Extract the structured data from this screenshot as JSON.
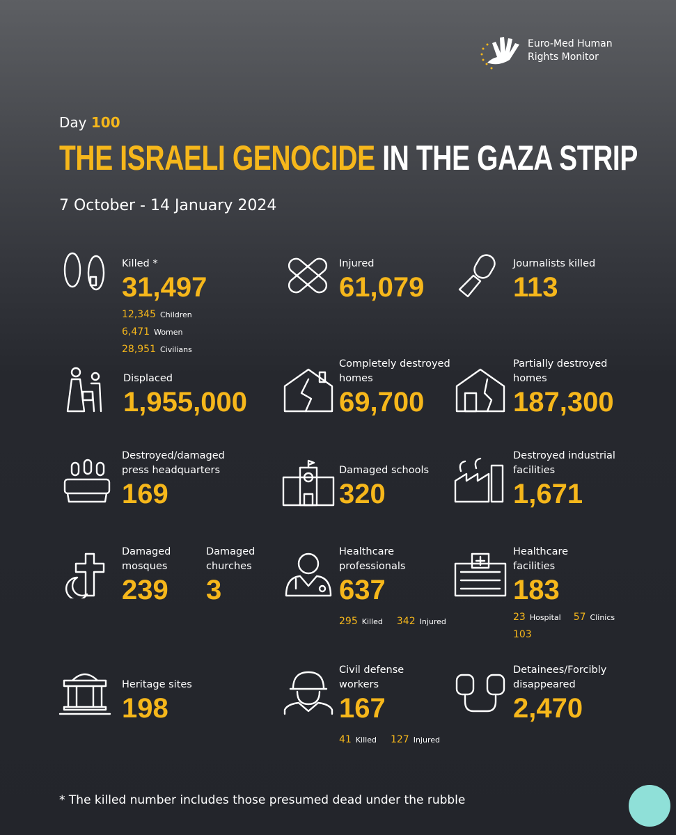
{
  "header": {
    "org": "Euro-Med Human Rights Monitor",
    "day_label": "Day",
    "day_number": "100",
    "title_highlight": "THE ISRAELI GENOCIDE",
    "title_rest": "IN THE GAZA STRIP",
    "date_range": "7 October - 14 January 2024"
  },
  "stats": [
    {
      "label": "Killed *",
      "value": "31,497",
      "breakdown": [
        {
          "value": "12,345",
          "label": "Children"
        },
        {
          "value": "6,471",
          "label": "Women"
        },
        {
          "value": "28,951",
          "label": "Civilians"
        }
      ]
    },
    {
      "label": "Injured",
      "value": "61,079"
    },
    {
      "label": "Journalists killed",
      "value": "113"
    },
    {
      "label": "Displaced",
      "value": "1,955,000"
    },
    {
      "label": "Completely destroyed homes",
      "value": "69,700"
    },
    {
      "label": "Partially destroyed homes",
      "value": "187,300"
    },
    {
      "label": "Destroyed/damaged press headquarters",
      "value": "169"
    },
    {
      "label": "Damaged schools",
      "value": "320"
    },
    {
      "label": "Destroyed industrial facilities",
      "value": "1,671"
    },
    {
      "label": "Damaged mosques",
      "value": "239"
    },
    {
      "label": "Damaged churches",
      "value": "3"
    },
    {
      "label": "Healthcare professionals",
      "value": "637",
      "breakdown": [
        {
          "value": "295",
          "label": "Killed"
        },
        {
          "value": "342",
          "label": "Injured"
        }
      ]
    },
    {
      "label": "Healthcare facilities",
      "value": "183",
      "breakdown": [
        {
          "value": "23",
          "label": "Hospital"
        },
        {
          "value": "57",
          "label": "Clinics"
        },
        {
          "value": "103"
        }
      ]
    },
    {
      "label": "Heritage sites",
      "value": "198"
    },
    {
      "label": "Civil defense workers",
      "value": "167",
      "breakdown": [
        {
          "value": "41",
          "label": "Killed"
        },
        {
          "value": "127",
          "label": "Injured"
        }
      ]
    },
    {
      "label": "Detainees/Forcibly disappeared",
      "value": "2,470"
    }
  ],
  "footer": {
    "note": "* The killed number includes those presumed dead under the rubble"
  }
}
